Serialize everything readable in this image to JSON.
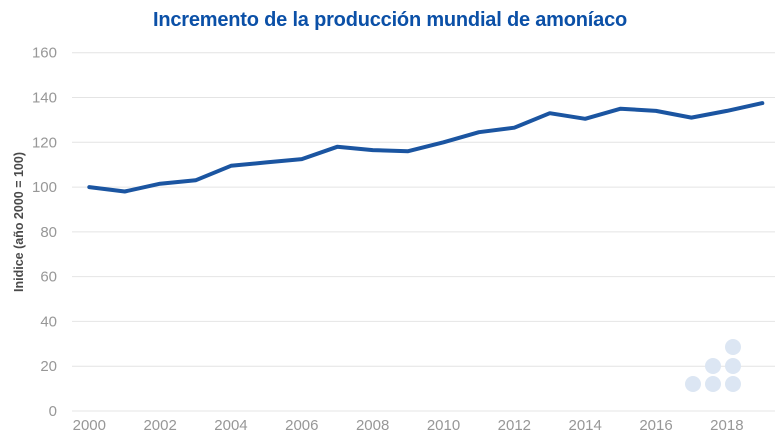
{
  "chart_data": {
    "type": "line",
    "title": "Incremento de la producción mundial de amoníaco",
    "ylabel": "Inidice (año 2000 = 100)",
    "xlabel": "",
    "x": [
      2000,
      2001,
      2002,
      2003,
      2004,
      2005,
      2006,
      2007,
      2008,
      2009,
      2010,
      2011,
      2012,
      2013,
      2014,
      2015,
      2016,
      2017,
      2018,
      2019
    ],
    "values": [
      100,
      98,
      101.5,
      103,
      109.5,
      111,
      112.5,
      118,
      116.5,
      116,
      120,
      124.5,
      126.5,
      133,
      130.5,
      135,
      134,
      131,
      134,
      137.5
    ],
    "ylim": [
      0,
      160
    ],
    "ytick_step": 20,
    "yticks": [
      0,
      20,
      40,
      60,
      80,
      100,
      120,
      140,
      160
    ],
    "xticks": [
      2000,
      2002,
      2004,
      2006,
      2008,
      2010,
      2012,
      2014,
      2016,
      2018
    ],
    "grid": true,
    "legend": false,
    "colors": {
      "title": "#0b50a7",
      "line": "#1b55a1",
      "grid": "#e4e4e4",
      "tick_labels": "#979797",
      "axis_label": "#4a4a4a",
      "watermark_dots": "#dce6f3",
      "background": "#ffffff"
    }
  }
}
